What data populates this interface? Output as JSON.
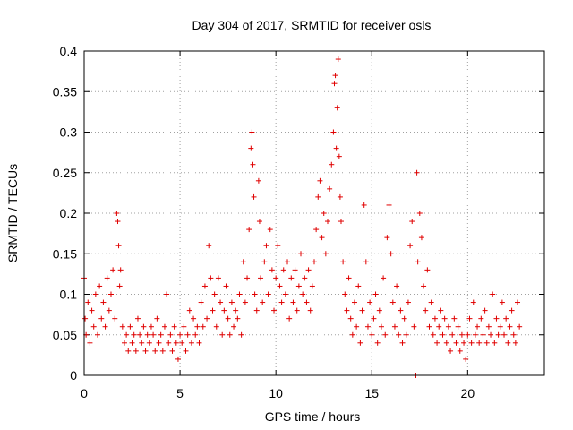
{
  "chart_data": {
    "type": "scatter",
    "title": "Day 304 of 2017, SRMTID for receiver osls",
    "xlabel": "GPS time / hours",
    "ylabel": "SRMTID / TECUs",
    "xlim": [
      0,
      24
    ],
    "ylim": [
      0,
      0.4
    ],
    "xticks": [
      0,
      5,
      10,
      15,
      20
    ],
    "yticks": [
      0,
      0.05,
      0.1,
      0.15,
      0.2,
      0.25,
      0.3,
      0.35,
      0.4
    ],
    "grid": true,
    "marker": "plus",
    "color": "#e00000",
    "series": [
      {
        "name": "SRMTID",
        "points": [
          [
            0.0,
            0.12
          ],
          [
            0.05,
            0.07
          ],
          [
            0.1,
            0.05
          ],
          [
            0.2,
            0.09
          ],
          [
            0.3,
            0.04
          ],
          [
            0.4,
            0.08
          ],
          [
            0.5,
            0.06
          ],
          [
            0.6,
            0.1
          ],
          [
            0.7,
            0.05
          ],
          [
            0.8,
            0.11
          ],
          [
            0.9,
            0.07
          ],
          [
            1.0,
            0.09
          ],
          [
            1.1,
            0.06
          ],
          [
            1.2,
            0.12
          ],
          [
            1.3,
            0.08
          ],
          [
            1.4,
            0.1
          ],
          [
            1.5,
            0.13
          ],
          [
            1.6,
            0.07
          ],
          [
            1.7,
            0.2
          ],
          [
            1.75,
            0.19
          ],
          [
            1.8,
            0.16
          ],
          [
            1.85,
            0.11
          ],
          [
            1.9,
            0.13
          ],
          [
            2.0,
            0.06
          ],
          [
            2.1,
            0.04
          ],
          [
            2.2,
            0.05
          ],
          [
            2.3,
            0.03
          ],
          [
            2.4,
            0.06
          ],
          [
            2.5,
            0.04
          ],
          [
            2.6,
            0.05
          ],
          [
            2.7,
            0.03
          ],
          [
            2.8,
            0.07
          ],
          [
            2.9,
            0.05
          ],
          [
            3.0,
            0.04
          ],
          [
            3.1,
            0.06
          ],
          [
            3.2,
            0.03
          ],
          [
            3.3,
            0.05
          ],
          [
            3.4,
            0.04
          ],
          [
            3.5,
            0.06
          ],
          [
            3.6,
            0.05
          ],
          [
            3.7,
            0.03
          ],
          [
            3.8,
            0.07
          ],
          [
            3.9,
            0.04
          ],
          [
            4.0,
            0.05
          ],
          [
            4.1,
            0.03
          ],
          [
            4.2,
            0.06
          ],
          [
            4.3,
            0.1
          ],
          [
            4.4,
            0.04
          ],
          [
            4.5,
            0.05
          ],
          [
            4.6,
            0.03
          ],
          [
            4.7,
            0.06
          ],
          [
            4.8,
            0.04
          ],
          [
            4.9,
            0.02
          ],
          [
            5.0,
            0.05
          ],
          [
            5.1,
            0.04
          ],
          [
            5.2,
            0.06
          ],
          [
            5.3,
            0.03
          ],
          [
            5.4,
            0.05
          ],
          [
            5.5,
            0.08
          ],
          [
            5.6,
            0.04
          ],
          [
            5.7,
            0.07
          ],
          [
            5.8,
            0.05
          ],
          [
            5.9,
            0.06
          ],
          [
            6.0,
            0.04
          ],
          [
            6.1,
            0.09
          ],
          [
            6.2,
            0.06
          ],
          [
            6.3,
            0.11
          ],
          [
            6.4,
            0.07
          ],
          [
            6.5,
            0.16
          ],
          [
            6.6,
            0.12
          ],
          [
            6.7,
            0.08
          ],
          [
            6.8,
            0.1
          ],
          [
            6.9,
            0.06
          ],
          [
            7.0,
            0.12
          ],
          [
            7.1,
            0.09
          ],
          [
            7.2,
            0.05
          ],
          [
            7.3,
            0.08
          ],
          [
            7.4,
            0.11
          ],
          [
            7.5,
            0.07
          ],
          [
            7.6,
            0.05
          ],
          [
            7.7,
            0.09
          ],
          [
            7.8,
            0.06
          ],
          [
            7.9,
            0.08
          ],
          [
            8.0,
            0.07
          ],
          [
            8.1,
            0.1
          ],
          [
            8.2,
            0.05
          ],
          [
            8.3,
            0.14
          ],
          [
            8.4,
            0.09
          ],
          [
            8.5,
            0.12
          ],
          [
            8.6,
            0.18
          ],
          [
            8.7,
            0.28
          ],
          [
            8.75,
            0.3
          ],
          [
            8.8,
            0.26
          ],
          [
            8.85,
            0.22
          ],
          [
            8.9,
            0.1
          ],
          [
            9.0,
            0.08
          ],
          [
            9.1,
            0.24
          ],
          [
            9.15,
            0.19
          ],
          [
            9.2,
            0.12
          ],
          [
            9.3,
            0.09
          ],
          [
            9.4,
            0.14
          ],
          [
            9.5,
            0.16
          ],
          [
            9.6,
            0.1
          ],
          [
            9.7,
            0.18
          ],
          [
            9.8,
            0.13
          ],
          [
            9.9,
            0.08
          ],
          [
            10.0,
            0.12
          ],
          [
            10.1,
            0.16
          ],
          [
            10.2,
            0.11
          ],
          [
            10.3,
            0.09
          ],
          [
            10.4,
            0.13
          ],
          [
            10.5,
            0.1
          ],
          [
            10.6,
            0.14
          ],
          [
            10.7,
            0.07
          ],
          [
            10.8,
            0.12
          ],
          [
            10.9,
            0.09
          ],
          [
            11.0,
            0.13
          ],
          [
            11.1,
            0.08
          ],
          [
            11.2,
            0.11
          ],
          [
            11.3,
            0.15
          ],
          [
            11.4,
            0.1
          ],
          [
            11.5,
            0.12
          ],
          [
            11.6,
            0.09
          ],
          [
            11.7,
            0.13
          ],
          [
            11.8,
            0.08
          ],
          [
            11.9,
            0.11
          ],
          [
            12.0,
            0.14
          ],
          [
            12.1,
            0.18
          ],
          [
            12.2,
            0.22
          ],
          [
            12.3,
            0.24
          ],
          [
            12.4,
            0.17
          ],
          [
            12.5,
            0.2
          ],
          [
            12.6,
            0.15
          ],
          [
            12.7,
            0.19
          ],
          [
            12.8,
            0.23
          ],
          [
            12.9,
            0.26
          ],
          [
            13.0,
            0.3
          ],
          [
            13.05,
            0.36
          ],
          [
            13.1,
            0.37
          ],
          [
            13.15,
            0.28
          ],
          [
            13.2,
            0.33
          ],
          [
            13.25,
            0.39
          ],
          [
            13.3,
            0.27
          ],
          [
            13.35,
            0.22
          ],
          [
            13.4,
            0.19
          ],
          [
            13.5,
            0.14
          ],
          [
            13.6,
            0.1
          ],
          [
            13.7,
            0.08
          ],
          [
            13.8,
            0.12
          ],
          [
            13.9,
            0.07
          ],
          [
            14.0,
            0.05
          ],
          [
            14.1,
            0.09
          ],
          [
            14.2,
            0.06
          ],
          [
            14.3,
            0.11
          ],
          [
            14.4,
            0.04
          ],
          [
            14.5,
            0.08
          ],
          [
            14.6,
            0.21
          ],
          [
            14.7,
            0.14
          ],
          [
            14.8,
            0.06
          ],
          [
            14.9,
            0.09
          ],
          [
            15.0,
            0.05
          ],
          [
            15.1,
            0.07
          ],
          [
            15.2,
            0.1
          ],
          [
            15.3,
            0.04
          ],
          [
            15.4,
            0.08
          ],
          [
            15.5,
            0.06
          ],
          [
            15.6,
            0.12
          ],
          [
            15.7,
            0.05
          ],
          [
            15.8,
            0.17
          ],
          [
            15.9,
            0.21
          ],
          [
            16.0,
            0.15
          ],
          [
            16.1,
            0.09
          ],
          [
            16.2,
            0.06
          ],
          [
            16.3,
            0.11
          ],
          [
            16.4,
            0.05
          ],
          [
            16.5,
            0.08
          ],
          [
            16.6,
            0.04
          ],
          [
            16.7,
            0.07
          ],
          [
            16.8,
            0.05
          ],
          [
            16.9,
            0.09
          ],
          [
            17.0,
            0.16
          ],
          [
            17.1,
            0.19
          ],
          [
            17.2,
            0.06
          ],
          [
            17.3,
            0.0
          ],
          [
            17.35,
            0.25
          ],
          [
            17.4,
            0.14
          ],
          [
            17.5,
            0.2
          ],
          [
            17.6,
            0.17
          ],
          [
            17.7,
            0.11
          ],
          [
            17.8,
            0.08
          ],
          [
            17.9,
            0.13
          ],
          [
            18.0,
            0.06
          ],
          [
            18.1,
            0.09
          ],
          [
            18.2,
            0.05
          ],
          [
            18.3,
            0.07
          ],
          [
            18.4,
            0.04
          ],
          [
            18.5,
            0.06
          ],
          [
            18.6,
            0.08
          ],
          [
            18.7,
            0.05
          ],
          [
            18.8,
            0.07
          ],
          [
            18.9,
            0.04
          ],
          [
            19.0,
            0.06
          ],
          [
            19.1,
            0.03
          ],
          [
            19.2,
            0.05
          ],
          [
            19.3,
            0.07
          ],
          [
            19.4,
            0.04
          ],
          [
            19.5,
            0.06
          ],
          [
            19.6,
            0.03
          ],
          [
            19.7,
            0.05
          ],
          [
            19.8,
            0.04
          ],
          [
            19.9,
            0.02
          ],
          [
            20.0,
            0.05
          ],
          [
            20.1,
            0.07
          ],
          [
            20.2,
            0.04
          ],
          [
            20.3,
            0.09
          ],
          [
            20.4,
            0.05
          ],
          [
            20.5,
            0.06
          ],
          [
            20.6,
            0.04
          ],
          [
            20.7,
            0.07
          ],
          [
            20.8,
            0.05
          ],
          [
            20.9,
            0.08
          ],
          [
            21.0,
            0.04
          ],
          [
            21.1,
            0.06
          ],
          [
            21.2,
            0.05
          ],
          [
            21.3,
            0.1
          ],
          [
            21.4,
            0.04
          ],
          [
            21.5,
            0.07
          ],
          [
            21.6,
            0.05
          ],
          [
            21.7,
            0.06
          ],
          [
            21.8,
            0.09
          ],
          [
            21.9,
            0.05
          ],
          [
            22.0,
            0.07
          ],
          [
            22.1,
            0.04
          ],
          [
            22.2,
            0.06
          ],
          [
            22.3,
            0.08
          ],
          [
            22.4,
            0.05
          ],
          [
            22.5,
            0.04
          ],
          [
            22.6,
            0.09
          ],
          [
            22.7,
            0.06
          ]
        ]
      }
    ]
  }
}
